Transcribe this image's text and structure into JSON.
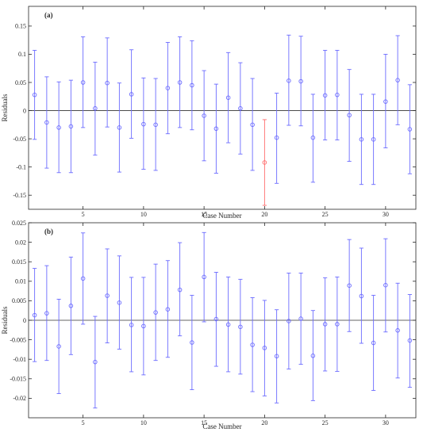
{
  "chart_data": [
    {
      "type": "scatter",
      "panel_label": "(a)",
      "xlabel": "Case Number",
      "ylabel": "Residuals",
      "xlim": [
        0.5,
        32.5
      ],
      "ylim": [
        -0.175,
        0.185
      ],
      "xticks": [
        5,
        10,
        15,
        20,
        25,
        30
      ],
      "yticks": [
        -0.15,
        -0.1,
        -0.05,
        0,
        0.05,
        0.1,
        0.15
      ],
      "ytick_labels": [
        "-0.15",
        "-0.1",
        "-0.05",
        "0",
        "0.05",
        "0.1",
        "0.15"
      ],
      "grid": false,
      "zero_line": true,
      "colors": {
        "normal": "#6b6bff",
        "outlier": "#ff6b6b",
        "axis": "#262626",
        "zero_line": "#333333"
      },
      "x": [
        1,
        2,
        3,
        4,
        5,
        6,
        7,
        8,
        9,
        10,
        11,
        12,
        13,
        14,
        15,
        16,
        17,
        18,
        19,
        20,
        21,
        22,
        23,
        24,
        25,
        26,
        27,
        28,
        29,
        30,
        31,
        32
      ],
      "residual": [
        0.028,
        -0.021,
        -0.03,
        -0.028,
        0.05,
        0.004,
        0.049,
        -0.03,
        0.029,
        -0.024,
        -0.025,
        0.04,
        0.05,
        0.045,
        -0.009,
        -0.032,
        0.023,
        0.004,
        -0.025,
        -0.092,
        -0.048,
        0.053,
        0.052,
        -0.048,
        0.027,
        0.028,
        -0.008,
        -0.051,
        -0.051,
        0.016,
        0.054,
        -0.033
      ],
      "lower": [
        -0.051,
        -0.102,
        -0.11,
        -0.11,
        -0.03,
        -0.079,
        -0.029,
        -0.109,
        -0.049,
        -0.104,
        -0.106,
        -0.041,
        -0.03,
        -0.034,
        -0.089,
        -0.111,
        -0.057,
        -0.077,
        -0.106,
        -0.168,
        -0.129,
        -0.026,
        -0.027,
        -0.127,
        -0.052,
        -0.052,
        -0.09,
        -0.131,
        -0.131,
        -0.066,
        -0.025,
        -0.112
      ],
      "upper": [
        0.107,
        0.06,
        0.051,
        0.054,
        0.131,
        0.086,
        0.129,
        0.049,
        0.108,
        0.058,
        0.057,
        0.121,
        0.131,
        0.124,
        0.071,
        0.047,
        0.103,
        0.085,
        0.057,
        -0.016,
        0.031,
        0.134,
        0.132,
        0.029,
        0.107,
        0.107,
        0.073,
        0.029,
        0.029,
        0.1,
        0.133,
        0.046
      ],
      "outlier_case": 20
    },
    {
      "type": "scatter",
      "panel_label": "(b)",
      "xlabel": "Case Number",
      "ylabel": "Residuals",
      "xlim": [
        0.5,
        32.5
      ],
      "ylim": [
        -0.025,
        0.025
      ],
      "xticks": [
        5,
        10,
        15,
        20,
        25,
        30
      ],
      "yticks": [
        -0.02,
        -0.015,
        -0.01,
        -0.005,
        0,
        0.005,
        0.01,
        0.015,
        0.02,
        0.025
      ],
      "ytick_labels": [
        "-0.02",
        "-0.015",
        "-0.01",
        "-0.005",
        "0",
        "0.005",
        "0.01",
        "0.015",
        "0.02",
        "0.025"
      ],
      "grid": false,
      "zero_line": true,
      "colors": {
        "normal": "#6b6bff",
        "axis": "#262626",
        "zero_line": "#333333"
      },
      "x": [
        1,
        2,
        3,
        4,
        5,
        6,
        7,
        8,
        9,
        10,
        11,
        12,
        13,
        14,
        15,
        16,
        17,
        18,
        19,
        20,
        21,
        22,
        23,
        24,
        25,
        26,
        27,
        28,
        29,
        30,
        31,
        32
      ],
      "residual": [
        0.0013,
        0.0018,
        -0.0067,
        0.0037,
        0.0107,
        -0.0107,
        0.0063,
        0.0045,
        -0.0012,
        -0.0015,
        0.002,
        0.0028,
        0.0078,
        -0.0057,
        0.0111,
        0.0003,
        -0.0011,
        -0.0017,
        -0.0063,
        -0.0071,
        -0.0092,
        -0.0002,
        0.0004,
        -0.0091,
        -0.001,
        -0.001,
        0.0089,
        0.0062,
        -0.0058,
        0.009,
        -0.0026,
        -0.0052
      ],
      "lower": [
        -0.0106,
        -0.0103,
        -0.0188,
        -0.0088,
        -0.001,
        -0.0225,
        -0.0058,
        -0.0074,
        -0.0132,
        -0.014,
        -0.0103,
        -0.0095,
        -0.004,
        -0.0178,
        -0.0004,
        -0.0118,
        -0.0132,
        -0.0138,
        -0.0183,
        -0.0194,
        -0.0212,
        -0.0125,
        -0.0113,
        -0.0206,
        -0.013,
        -0.0131,
        -0.0029,
        -0.0059,
        -0.018,
        -0.003,
        -0.0148,
        -0.0172
      ],
      "upper": [
        0.0133,
        0.014,
        0.0054,
        0.0162,
        0.0224,
        0.001,
        0.0183,
        0.0165,
        0.011,
        0.011,
        0.0144,
        0.0153,
        0.0199,
        0.0064,
        0.0225,
        0.0123,
        0.0111,
        0.0105,
        0.0058,
        0.0051,
        0.0027,
        0.0121,
        0.0121,
        0.0025,
        0.0109,
        0.0111,
        0.0207,
        0.0185,
        0.0064,
        0.0209,
        0.0095,
        0.0066
      ]
    }
  ]
}
